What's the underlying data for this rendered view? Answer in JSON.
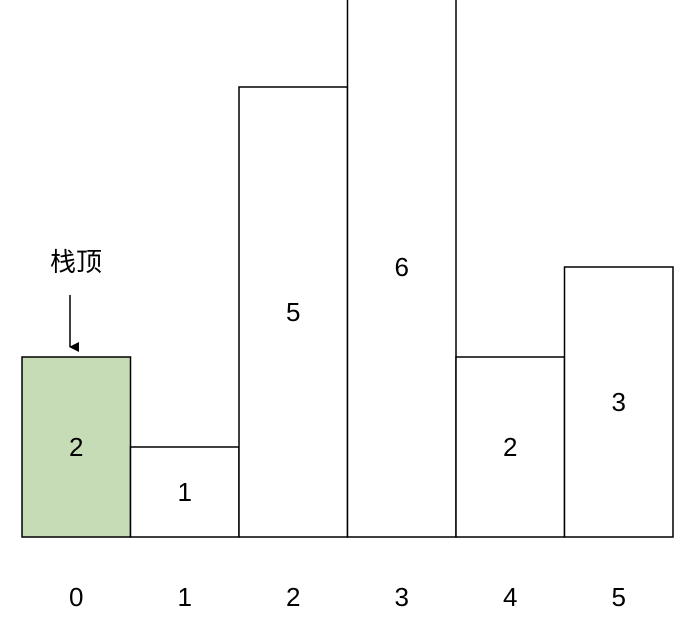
{
  "diagram": {
    "pointer_label": "栈顶",
    "bars": [
      {
        "index": "0",
        "value": 2,
        "highlighted": true
      },
      {
        "index": "1",
        "value": 1,
        "highlighted": false
      },
      {
        "index": "2",
        "value": 5,
        "highlighted": false
      },
      {
        "index": "3",
        "value": 6,
        "highlighted": false
      },
      {
        "index": "4",
        "value": 2,
        "highlighted": false
      },
      {
        "index": "5",
        "value": 3,
        "highlighted": false
      }
    ],
    "colors": {
      "highlight_fill": "#c6dcb6",
      "bar_fill": "#ffffff",
      "stroke": "#000000"
    }
  }
}
